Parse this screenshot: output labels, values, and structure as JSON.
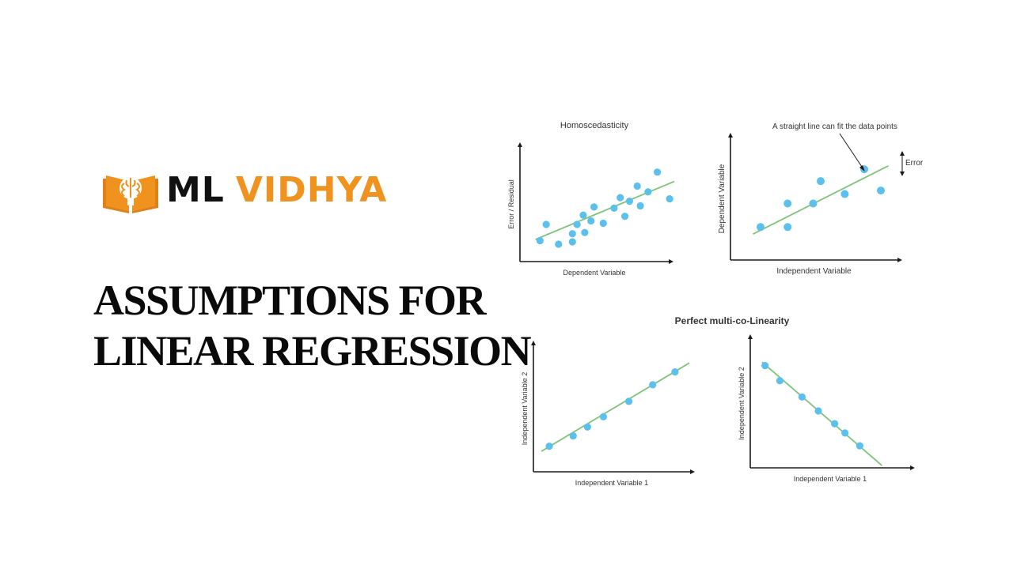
{
  "brand": {
    "logo_text_1": "ML",
    "logo_text_2": "VIDHYA",
    "logo_icon": "book-brain-icon",
    "colors": {
      "accent": "#F0921E",
      "dark": "#111111"
    }
  },
  "heading": {
    "line1": "ASSUMPTIONS FOR",
    "line2": "LINEAR REGRESSION"
  },
  "multi_title": "Perfect multi-co-Linearity",
  "colors": {
    "points": "#5BC0EB",
    "line": "#7CC576",
    "axis": "#1a1a1a"
  },
  "chart_data": [
    {
      "id": "homoscedasticity",
      "type": "scatter",
      "title": "Homoscedasticity",
      "xlabel": "Dependent Variable",
      "ylabel": "Error / Residual",
      "xlim": [
        0,
        10
      ],
      "ylim": [
        0,
        10
      ],
      "grid": false,
      "series": [
        {
          "x": [
            1.3,
            1.7,
            2.5,
            3.4,
            3.4,
            3.7,
            4.1,
            4.2,
            4.6,
            4.8,
            5.4,
            6.1,
            6.5,
            6.8,
            7.1,
            7.6,
            7.8,
            8.3,
            8.9,
            9.7
          ],
          "y": [
            1.8,
            3.2,
            1.5,
            2.4,
            1.7,
            3.2,
            4.0,
            2.5,
            3.5,
            4.7,
            3.3,
            4.6,
            5.5,
            3.9,
            5.2,
            6.5,
            4.8,
            6.0,
            7.7,
            5.4
          ],
          "trend": [
            [
              1,
              1.9
            ],
            [
              10,
              6.9
            ]
          ]
        }
      ]
    },
    {
      "id": "linear-fit",
      "type": "scatter",
      "title": "",
      "xlabel": "Independent Variable",
      "ylabel": "Dependent Variable",
      "xlim": [
        0,
        10
      ],
      "ylim": [
        0,
        10
      ],
      "grid": false,
      "annotations": [
        "A straight line can fit the data points",
        "Error"
      ],
      "series": [
        {
          "x": [
            2.0,
            3.8,
            3.8,
            5.5,
            6.0,
            7.6,
            8.9,
            10.0
          ],
          "y": [
            2.8,
            2.8,
            4.8,
            4.8,
            6.7,
            5.6,
            7.7,
            5.9
          ],
          "trend": [
            [
              1.5,
              2.2
            ],
            [
              10.5,
              8.0
            ]
          ]
        }
      ]
    },
    {
      "id": "multicollinearity-positive",
      "type": "scatter",
      "title": "",
      "xlabel": "Independent Variable 1",
      "ylabel": "Independent Variable 2",
      "xlim": [
        0,
        10
      ],
      "ylim": [
        0,
        10
      ],
      "grid": false,
      "series": [
        {
          "x": [
            1.0,
            2.5,
            3.4,
            4.4,
            6.0,
            7.5,
            8.9
          ],
          "y": [
            2.0,
            2.8,
            3.5,
            4.3,
            5.5,
            6.8,
            7.8
          ],
          "trend": [
            [
              0.5,
              1.6
            ],
            [
              9.8,
              8.5
            ]
          ]
        }
      ]
    },
    {
      "id": "multicollinearity-negative",
      "type": "scatter",
      "title": "",
      "xlabel": "Independent Variable 1",
      "ylabel": "Independent Variable 2",
      "xlim": [
        0,
        10
      ],
      "ylim": [
        0,
        10
      ],
      "grid": false,
      "series": [
        {
          "x": [
            1.0,
            2.0,
            3.5,
            4.6,
            5.7,
            6.4,
            7.4
          ],
          "y": [
            8.8,
            7.5,
            6.1,
            4.9,
            3.8,
            3.0,
            1.9
          ],
          "trend": [
            [
              0.8,
              9.1
            ],
            [
              8.9,
              0.2
            ]
          ]
        }
      ]
    }
  ]
}
